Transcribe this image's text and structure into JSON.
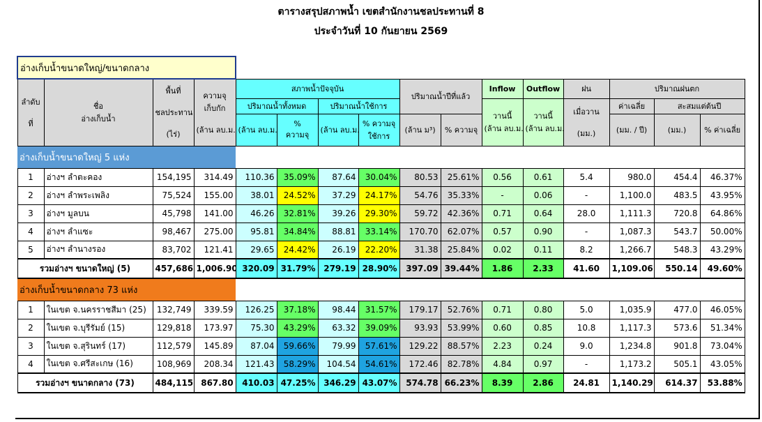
{
  "report": {
    "title": "ตารางสรุปสภาพน้ำ เขตสำนักงานชลประทานที่ 8",
    "date_line": "ประจำวันที่ 10 กันยายน 2569",
    "section_header": "อ่างเก็บน้ำขนาดใหญ่/ขนาดกลาง"
  },
  "headers": {
    "no_1": "ลำดับ",
    "no_2": "ที่",
    "name_1": "ชื่อ",
    "name_2": "อ่างเก็บน้ำ",
    "area_1": "พื้นที่",
    "area_2": "ชลประทาน",
    "area_3": "(ไร่)",
    "capacity_1": "ความจุ",
    "capacity_2": "เก็บกัก",
    "capacity_3": "(ล้าน ลบ.ม.)",
    "current": "สภาพน้ำปัจจุบัน",
    "total": "ปริมาณน้ำทั้งหมด",
    "usable": "ปริมาณน้ำใช้การ",
    "unit_mcm": "(ล้าน ลบ.ม.)",
    "pct_cap_1": "%",
    "pct_cap_2": "ความจุ",
    "pct_use_1": "% ความจุ",
    "pct_use_2": "ใช้การ",
    "lastyear": "ปริมาณน้ำปีที่แล้ว",
    "lastyear_unit": "(ล้าน ม³)",
    "lastyear_pct": "% ความจุ",
    "inflow": "Inflow",
    "outflow": "Outflow",
    "today": "วานนี้",
    "rain": "ฝน",
    "rain_yesterday": "เมื่อวาน",
    "rain_unit": "(มม.)",
    "rainfall": "ปริมาณฝนตก",
    "avg": "ค่าเฉลี่ย",
    "avg_unit": "(มม. / ปี)",
    "accum": "สะสมแต่ต้นปี",
    "accum_unit": "(มม.)",
    "pct_avg": "% ค่าเฉลี่ย"
  },
  "large": {
    "banner": "อ่างเก็บน้ำขนาดใหญ่ 5 แห่ง",
    "rows": [
      [
        "1",
        "อ่างฯ ลำตะคอง",
        "154,195",
        "314.49",
        "110.36",
        "35.09%",
        "87.64",
        "30.04%",
        "80.53",
        "25.61%",
        "0.56",
        "0.61",
        "5.4",
        "980.0",
        "454.4",
        "46.37%"
      ],
      [
        "2",
        "อ่างฯ ลำพระเพลิง",
        "75,524",
        "155.00",
        "38.01",
        "24.52%",
        "37.29",
        "24.17%",
        "54.76",
        "35.33%",
        "-",
        "0.06",
        "-",
        "1,100.0",
        "483.5",
        "43.95%"
      ],
      [
        "3",
        "อ่างฯ มูลบน",
        "45,798",
        "141.00",
        "46.26",
        "32.81%",
        "39.26",
        "29.30%",
        "59.72",
        "42.36%",
        "0.71",
        "0.64",
        "28.0",
        "1,111.3",
        "720.8",
        "64.86%"
      ],
      [
        "4",
        "อ่างฯ ลำแซะ",
        "98,467",
        "275.00",
        "95.81",
        "34.84%",
        "88.81",
        "33.14%",
        "170.70",
        "62.07%",
        "0.57",
        "0.90",
        "-",
        "1,087.3",
        "543.7",
        "50.00%"
      ],
      [
        "5",
        "อ่างฯ ลำนางรอง",
        "83,702",
        "121.41",
        "29.65",
        "24.42%",
        "26.19",
        "22.20%",
        "31.38",
        "25.84%",
        "0.02",
        "0.11",
        "8.2",
        "1,266.7",
        "548.3",
        "43.29%"
      ]
    ],
    "total": [
      "รวมอ่างฯ ขนาดใหญ่ (5)",
      "457,686",
      "1,006.90",
      "320.09",
      "31.79%",
      "279.19",
      "28.90%",
      "397.09",
      "39.44%",
      "1.86",
      "2.33",
      "41.60",
      "1,109.06",
      "550.14",
      "49.60%"
    ]
  },
  "medium": {
    "banner": "อ่างเก็บน้ำขนาดกลาง 73 แห่ง",
    "rows": [
      [
        "1",
        "ในเขต จ.นครราชสีมา (25)",
        "132,749",
        "339.59",
        "126.25",
        "37.18%",
        "98.44",
        "31.57%",
        "179.17",
        "52.76%",
        "0.71",
        "0.80",
        "5.0",
        "1,035.9",
        "477.0",
        "46.05%"
      ],
      [
        "2",
        "ในเขต จ.บุรีรัมย์ (15)",
        "129,818",
        "173.97",
        "75.30",
        "43.29%",
        "63.32",
        "39.09%",
        "93.93",
        "53.99%",
        "0.60",
        "0.85",
        "10.8",
        "1,117.3",
        "573.6",
        "51.34%"
      ],
      [
        "3",
        "ในเขต จ.สุรินทร์ (17)",
        "112,579",
        "145.89",
        "87.04",
        "59.66%",
        "79.99",
        "57.61%",
        "129.22",
        "88.57%",
        "2.23",
        "0.24",
        "9.0",
        "1,234.8",
        "901.8",
        "73.04%"
      ],
      [
        "4",
        "ในเขต จ.ศรีสะเกษ (16)",
        "108,969",
        "208.34",
        "121.43",
        "58.29%",
        "104.54",
        "54.61%",
        "172.46",
        "82.78%",
        "4.84",
        "0.97",
        "-",
        "1,173.2",
        "505.1",
        "43.05%"
      ]
    ],
    "total": [
      "รวมอ่างฯ ขนาดกลาง (73)",
      "484,115",
      "867.80",
      "410.03",
      "47.25%",
      "346.29",
      "43.07%",
      "574.78",
      "66.23%",
      "8.39",
      "2.86",
      "24.81",
      "1,140.29",
      "614.37",
      "53.88%"
    ]
  },
  "colors": {
    "pct_large": [
      "#66ff66",
      "#ffff00",
      "#66ff66",
      "#66ff66",
      "#ffff00"
    ],
    "use_large": [
      "#66ff66",
      "#ffff00",
      "#ffff00",
      "#66ff66",
      "#ffff00"
    ],
    "pct_medium": [
      "#66ff66",
      "#66ff66",
      "#1fa3e0",
      "#1fa3e0"
    ],
    "use_medium": [
      "#66ff66",
      "#66ff66",
      "#1fa3e0",
      "#1fa3e0"
    ]
  }
}
